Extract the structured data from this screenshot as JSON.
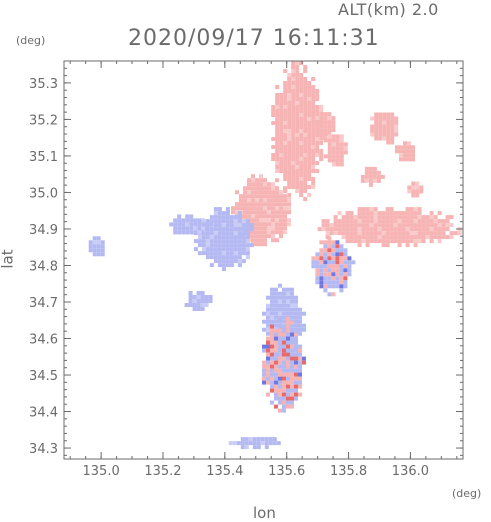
{
  "header": {
    "altitude_label": "ALT(km) 2.0",
    "timestamp": "2020/09/17 16:11:31"
  },
  "chart_data": {
    "type": "heatmap",
    "title": "2020/09/17 16:11:31",
    "subtitle": "ALT(km) 2.0",
    "xlabel": "lon",
    "ylabel": "lat",
    "xunit": "(deg)",
    "yunit": "(deg)",
    "xlim": [
      134.88,
      136.17
    ],
    "ylim": [
      34.27,
      35.36
    ],
    "xticks": [
      135.0,
      135.2,
      135.4,
      135.6,
      135.8,
      136.0
    ],
    "xtick_labels": [
      "135.0",
      "135.2",
      "135.4",
      "135.6",
      "135.8",
      "136.0"
    ],
    "yticks": [
      34.3,
      34.4,
      34.5,
      34.6,
      34.7,
      34.8,
      34.9,
      35.0,
      35.1,
      35.2,
      35.3
    ],
    "ytick_labels": [
      "34.3",
      "34.4",
      "34.5",
      "34.6",
      "34.7",
      "34.8",
      "34.9",
      "35.0",
      "35.1",
      "35.2",
      "35.3"
    ],
    "grid": false,
    "colors": {
      "positive": "#f6b4b4",
      "negative": "#b4b9f2",
      "axis": "#6b6b6b"
    },
    "regions": [
      {
        "sign": "positive",
        "lon": [
          135.55,
          135.72
        ],
        "lat": [
          34.97,
          35.36
        ]
      },
      {
        "sign": "positive",
        "lon": [
          135.42,
          135.62
        ],
        "lat": [
          34.85,
          35.05
        ]
      },
      {
        "sign": "positive",
        "lon": [
          135.68,
          135.76
        ],
        "lat": [
          35.14,
          35.22
        ]
      },
      {
        "sign": "positive",
        "lon": [
          135.72,
          135.8
        ],
        "lat": [
          35.07,
          35.17
        ]
      },
      {
        "sign": "positive",
        "lon": [
          135.87,
          135.97
        ],
        "lat": [
          35.13,
          35.23
        ]
      },
      {
        "sign": "positive",
        "lon": [
          135.95,
          136.02
        ],
        "lat": [
          35.08,
          35.14
        ]
      },
      {
        "sign": "positive",
        "lon": [
          135.84,
          135.92
        ],
        "lat": [
          35.02,
          35.07
        ]
      },
      {
        "sign": "positive",
        "lon": [
          135.99,
          136.04
        ],
        "lat": [
          34.99,
          35.03
        ]
      },
      {
        "sign": "positive",
        "lon": [
          135.7,
          136.17
        ],
        "lat": [
          34.85,
          34.96
        ]
      },
      {
        "sign": "negative",
        "lon": [
          135.3,
          135.5
        ],
        "lat": [
          34.79,
          34.96
        ]
      },
      {
        "sign": "negative",
        "lon": [
          135.22,
          135.36
        ],
        "lat": [
          34.88,
          34.94
        ]
      },
      {
        "sign": "negative",
        "lon": [
          134.96,
          135.02
        ],
        "lat": [
          34.82,
          34.88
        ]
      },
      {
        "sign": "negative",
        "lon": [
          135.27,
          135.36
        ],
        "lat": [
          34.67,
          34.73
        ]
      },
      {
        "sign": "negative",
        "lon": [
          135.52,
          135.66
        ],
        "lat": [
          34.55,
          34.75
        ]
      },
      {
        "sign": "mixed",
        "lon": [
          135.52,
          135.66
        ],
        "lat": [
          34.4,
          34.66
        ]
      },
      {
        "sign": "mixed",
        "lon": [
          135.68,
          135.82
        ],
        "lat": [
          34.72,
          34.88
        ]
      },
      {
        "sign": "negative",
        "lon": [
          135.4,
          135.6
        ],
        "lat": [
          34.3,
          34.33
        ]
      }
    ]
  }
}
